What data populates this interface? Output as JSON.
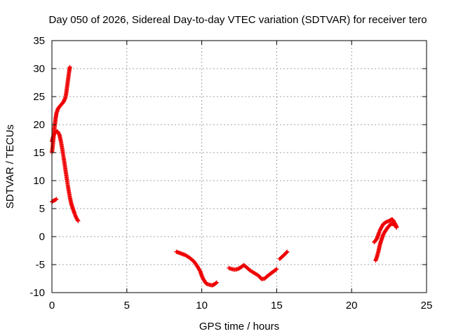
{
  "chart_data": {
    "type": "scatter",
    "title": "Day 050 of 2026, Sidereal Day-to-day VTEC variation (SDTVAR) for receiver tero",
    "xlabel": "GPS time / hours",
    "ylabel": "SDTVAR / TECUs",
    "xlim": [
      0,
      25
    ],
    "ylim": [
      -10,
      35
    ],
    "xticks": [
      0,
      5,
      10,
      15,
      20,
      25
    ],
    "yticks": [
      -10,
      -5,
      0,
      5,
      10,
      15,
      20,
      25,
      30,
      35
    ],
    "grid": true,
    "marker": "plus",
    "color": "#ee0000",
    "series": [
      {
        "segments": [
          [
            [
              0.0,
              6.2
            ],
            [
              0.1,
              6.4
            ],
            [
              0.2,
              6.5
            ],
            [
              0.3,
              6.7
            ]
          ],
          [
            [
              0.0,
              15.0
            ],
            [
              0.05,
              16.0
            ],
            [
              0.1,
              17.5
            ],
            [
              0.15,
              19.0
            ],
            [
              0.2,
              20.0
            ],
            [
              0.25,
              21.2
            ],
            [
              0.3,
              22.0
            ],
            [
              0.4,
              22.8
            ],
            [
              0.5,
              23.2
            ],
            [
              0.6,
              23.5
            ],
            [
              0.7,
              23.8
            ],
            [
              0.8,
              24.2
            ],
            [
              0.9,
              24.8
            ],
            [
              0.95,
              25.5
            ],
            [
              1.0,
              26.5
            ],
            [
              1.05,
              27.5
            ],
            [
              1.1,
              28.5
            ],
            [
              1.15,
              29.5
            ],
            [
              1.2,
              30.3
            ]
          ],
          [
            [
              0.0,
              17.0
            ],
            [
              0.1,
              18.0
            ],
            [
              0.2,
              18.5
            ],
            [
              0.3,
              18.8
            ],
            [
              0.4,
              18.7
            ],
            [
              0.5,
              18.2
            ],
            [
              0.6,
              17.0
            ],
            [
              0.7,
              15.5
            ],
            [
              0.8,
              13.8
            ],
            [
              0.9,
              12.0
            ],
            [
              1.0,
              10.2
            ],
            [
              1.1,
              8.5
            ],
            [
              1.2,
              7.0
            ],
            [
              1.3,
              5.8
            ],
            [
              1.4,
              5.0
            ],
            [
              1.5,
              4.2
            ],
            [
              1.6,
              3.5
            ],
            [
              1.7,
              3.0
            ],
            [
              1.75,
              2.8
            ]
          ],
          [
            [
              8.3,
              -2.7
            ],
            [
              8.6,
              -3.0
            ],
            [
              8.9,
              -3.3
            ],
            [
              9.2,
              -3.8
            ],
            [
              9.5,
              -4.5
            ],
            [
              9.7,
              -5.3
            ],
            [
              9.9,
              -6.2
            ],
            [
              10.0,
              -7.0
            ],
            [
              10.1,
              -7.6
            ],
            [
              10.2,
              -8.0
            ],
            [
              10.3,
              -8.4
            ],
            [
              10.5,
              -8.6
            ],
            [
              10.7,
              -8.7
            ],
            [
              10.85,
              -8.5
            ],
            [
              11.0,
              -8.2
            ]
          ],
          [
            [
              11.8,
              -5.6
            ],
            [
              12.0,
              -5.8
            ],
            [
              12.2,
              -5.9
            ],
            [
              12.4,
              -5.8
            ],
            [
              12.6,
              -5.5
            ],
            [
              12.8,
              -5.1
            ],
            [
              13.0,
              -5.5
            ],
            [
              13.2,
              -6.0
            ],
            [
              13.5,
              -6.5
            ],
            [
              13.8,
              -7.0
            ],
            [
              14.0,
              -7.6
            ],
            [
              14.2,
              -7.5
            ],
            [
              14.4,
              -7.0
            ],
            [
              14.6,
              -6.6
            ],
            [
              14.8,
              -6.2
            ],
            [
              15.0,
              -5.8
            ]
          ],
          [
            [
              15.2,
              -4.0
            ],
            [
              15.4,
              -3.5
            ],
            [
              15.6,
              -3.0
            ],
            [
              15.7,
              -2.7
            ]
          ],
          [
            [
              21.5,
              -1.0
            ],
            [
              21.6,
              -0.7
            ],
            [
              21.7,
              -0.3
            ],
            [
              21.8,
              0.5
            ],
            [
              21.9,
              1.2
            ],
            [
              22.0,
              1.7
            ],
            [
              22.1,
              2.2
            ],
            [
              22.3,
              2.6
            ],
            [
              22.5,
              2.8
            ],
            [
              22.7,
              3.1
            ],
            [
              22.8,
              2.8
            ],
            [
              22.9,
              2.3
            ],
            [
              23.0,
              1.8
            ]
          ],
          [
            [
              21.6,
              -4.3
            ],
            [
              21.7,
              -3.5
            ],
            [
              21.8,
              -2.5
            ],
            [
              21.9,
              -1.3
            ],
            [
              22.0,
              -0.5
            ],
            [
              22.1,
              0.3
            ],
            [
              22.2,
              0.8
            ],
            [
              22.3,
              1.2
            ],
            [
              22.4,
              1.6
            ],
            [
              22.5,
              1.9
            ],
            [
              22.6,
              2.2
            ],
            [
              22.7,
              2.3
            ],
            [
              22.8,
              2.2
            ],
            [
              22.9,
              2.0
            ],
            [
              23.0,
              1.6
            ]
          ]
        ]
      }
    ]
  }
}
